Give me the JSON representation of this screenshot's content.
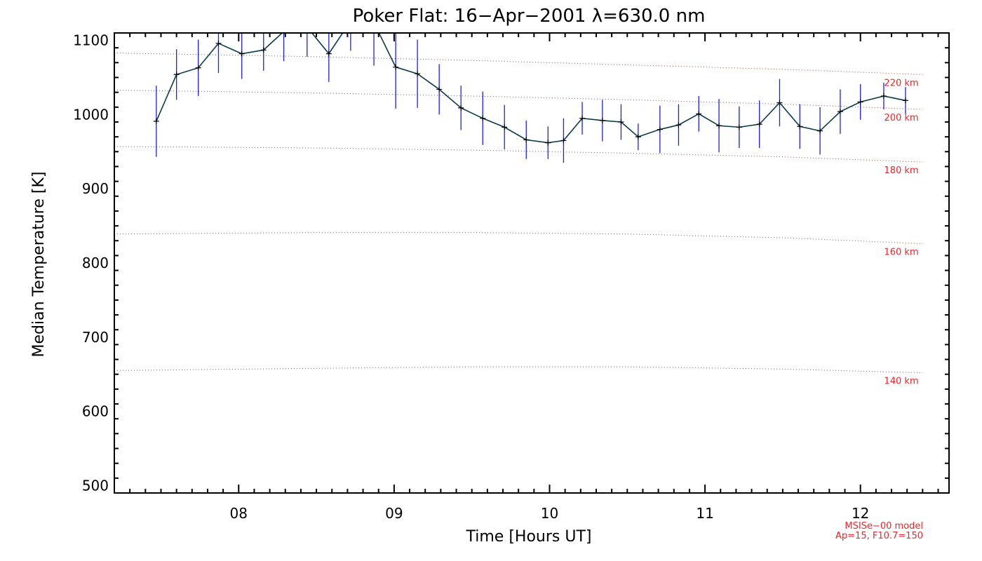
{
  "chart_data": {
    "type": "line",
    "title": "Poker Flat: 16−Apr−2001 λ=630.0 nm",
    "xlabel": "Time [Hours UT]",
    "ylabel": "Median Temperature [K]",
    "xlim": [
      7.2,
      12.57
    ],
    "ylim": [
      490,
      1110
    ],
    "x_tick_values": [
      8,
      9,
      10,
      11,
      12
    ],
    "x_tick_labels": [
      "08",
      "09",
      "10",
      "11",
      "12"
    ],
    "y_tick_values": [
      500,
      600,
      700,
      800,
      900,
      1000,
      1100
    ],
    "y_tick_labels": [
      "500",
      "600",
      "700",
      "800",
      "900",
      "1000",
      "1100"
    ],
    "grid": false,
    "series": [
      {
        "type": "line_errorbar",
        "line_color": "#0b3a4a",
        "errorbar_color": "#1f1fe6",
        "x": [
          7.47,
          7.6,
          7.74,
          7.87,
          8.02,
          8.16,
          8.29,
          8.44,
          8.58,
          8.72,
          8.87,
          9.01,
          9.15,
          9.29,
          9.43,
          9.57,
          9.71,
          9.85,
          9.99,
          10.09,
          10.21,
          10.34,
          10.46,
          10.57,
          10.71,
          10.83,
          10.96,
          11.09,
          11.22,
          11.35,
          11.48,
          11.61,
          11.74,
          11.87,
          12.0,
          12.15,
          12.29
        ],
        "y": [
          991,
          1054,
          1063,
          1096,
          1082,
          1087,
          1112,
          1118,
          1082,
          1126,
          1124,
          1064,
          1055,
          1034,
          1009,
          995,
          983,
          966,
          962,
          965,
          995,
          992,
          990,
          970,
          980,
          986,
          1001,
          985,
          983,
          987,
          1016,
          984,
          978,
          1004,
          1017,
          1025,
          1019
        ],
        "err": [
          48,
          34,
          38,
          40,
          34,
          28,
          40,
          40,
          38,
          40,
          58,
          56,
          46,
          34,
          30,
          36,
          30,
          26,
          22,
          30,
          22,
          28,
          24,
          18,
          32,
          28,
          24,
          36,
          28,
          32,
          32,
          30,
          32,
          30,
          24,
          18,
          18
        ]
      }
    ],
    "model_curves": [
      {
        "label": "140 km",
        "color": "#e8282b",
        "x": [
          7.2,
          8.5,
          9.5,
          10.5,
          11.5,
          12.4
        ],
        "y": [
          655,
          658,
          660,
          660,
          657,
          652
        ]
      },
      {
        "label": "160 km",
        "color": "#e8282b",
        "x": [
          7.2,
          8.5,
          9.5,
          10.5,
          11.5,
          12.4
        ],
        "y": [
          839,
          841,
          841,
          839,
          834,
          826
        ]
      },
      {
        "label": "180 km",
        "color": "#e8282b",
        "x": [
          7.2,
          8.5,
          9.5,
          10.5,
          11.5,
          12.4
        ],
        "y": [
          957,
          955,
          952,
          948,
          943,
          936
        ]
      },
      {
        "label": "200 km",
        "color": "#e8282b",
        "x": [
          7.2,
          8.5,
          9.5,
          10.5,
          11.5,
          12.4
        ],
        "y": [
          1033,
          1029,
          1025,
          1020,
          1014,
          1007
        ]
      },
      {
        "label": "220 km",
        "color": "#e8282b",
        "x": [
          7.2,
          8.5,
          9.5,
          10.5,
          11.5,
          12.4
        ],
        "y": [
          1083,
          1078,
          1073,
          1067,
          1061,
          1054
        ]
      }
    ],
    "model_note": [
      "MSISe−00 model",
      "Ap=15, F10.7=150"
    ]
  }
}
